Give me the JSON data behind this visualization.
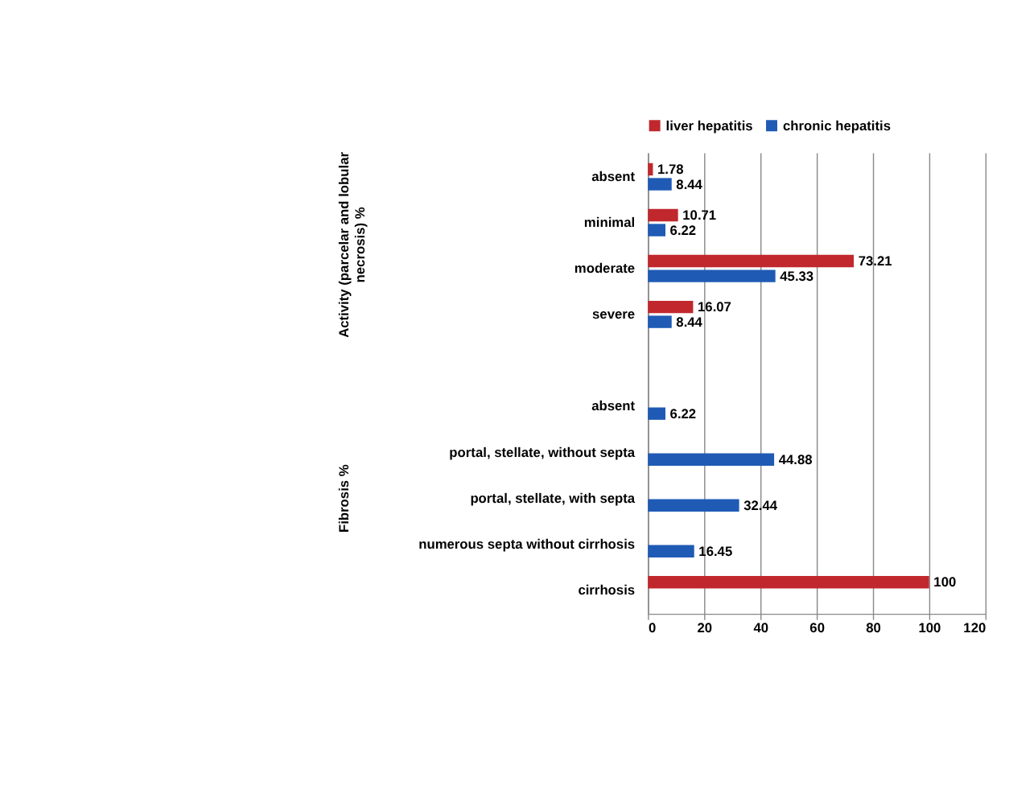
{
  "chart_data": {
    "type": "bar",
    "orientation": "horizontal",
    "categories": [
      "absent",
      "minimal",
      "moderate",
      "severe",
      null,
      "absent",
      "portal, stellate, without septa",
      "portal, stellate, with septa",
      "numerous septa without cirrhosis",
      "cirrhosis"
    ],
    "series": [
      {
        "name": "liver hepatitis",
        "color": "#c0282d",
        "values": [
          1.78,
          10.71,
          73.21,
          16.07,
          null,
          null,
          null,
          null,
          null,
          100
        ]
      },
      {
        "name": "chronic hepatitis",
        "color": "#1f5bb5",
        "values": [
          8.44,
          6.22,
          45.33,
          8.44,
          null,
          6.22,
          44.88,
          32.44,
          16.45,
          null
        ]
      }
    ],
    "annotations": [
      "Activity (parcelar and lobular necrosis) %",
      "Fibrosis %"
    ],
    "xlim": [
      0,
      120
    ],
    "xticks": [
      0,
      20,
      40,
      60,
      80,
      100,
      120
    ],
    "grid": "x",
    "legend": "top",
    "data_labels": true
  }
}
